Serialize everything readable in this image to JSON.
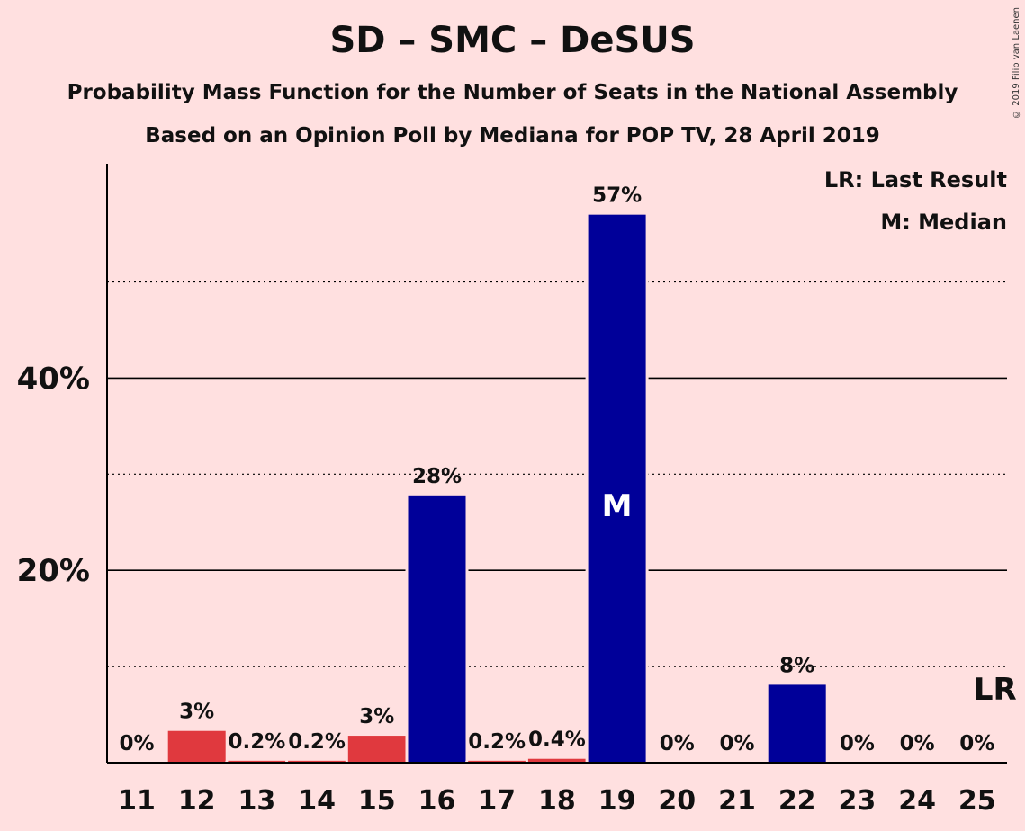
{
  "chart_data": {
    "type": "bar",
    "title": "SD – SMC – DeSUS",
    "subtitle": "Probability Mass Function for the Number of Seats in the National Assembly",
    "subtitle2": "Based on an Opinion Poll by Mediana for POP TV, 28 April 2019",
    "categories": [
      "11",
      "12",
      "13",
      "14",
      "15",
      "16",
      "17",
      "18",
      "19",
      "20",
      "21",
      "22",
      "23",
      "24",
      "25"
    ],
    "values": [
      0,
      3.3,
      0.2,
      0.2,
      2.8,
      27.8,
      0.2,
      0.4,
      57,
      0,
      0,
      8.1,
      0,
      0,
      0
    ],
    "labels": [
      "0%",
      "3%",
      "0.2%",
      "0.2%",
      "3%",
      "28%",
      "0.2%",
      "0.4%",
      "57%",
      "0%",
      "0%",
      "8%",
      "0%",
      "0%",
      "0%"
    ],
    "colors": [
      "#e0393e",
      "#e0393e",
      "#e0393e",
      "#e0393e",
      "#e0393e",
      "#000099",
      "#e0393e",
      "#e0393e",
      "#000099",
      "#000099",
      "#000099",
      "#000099",
      "#000099",
      "#000099",
      "#000099"
    ],
    "y_ticks": [
      {
        "value": 20,
        "label": "20%"
      },
      {
        "value": 40,
        "label": "40%"
      }
    ],
    "minor_gridlines": [
      10,
      30,
      50
    ],
    "ylim": [
      0,
      62
    ],
    "median_category": "19",
    "median_marker": "M",
    "last_result_category": "25",
    "last_result_marker": "LR",
    "legend": {
      "last_result": "LR: Last Result",
      "median": "M: Median",
      "placement": "top-right"
    }
  },
  "copyright": "© 2019 Filip van Laenen",
  "palette": {
    "background": "#ffe0e0",
    "red": "#e0393e",
    "blue": "#000099"
  }
}
